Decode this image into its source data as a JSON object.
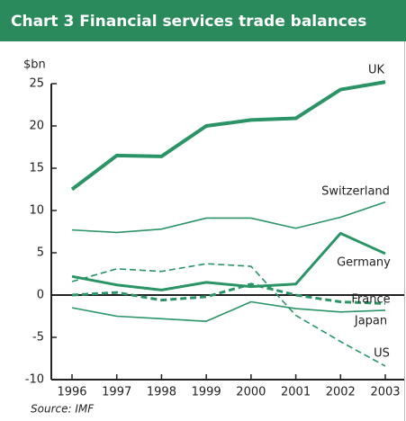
{
  "chart_data": {
    "type": "line",
    "title": "Chart 3  Financial services trade balances",
    "y_unit": "$bn",
    "source": "Source: IMF",
    "categories": [
      "1996",
      "1997",
      "1998",
      "1999",
      "2000",
      "2001",
      "2002",
      "2003"
    ],
    "ylim": [
      -10,
      25
    ],
    "yticks": [
      25,
      20,
      15,
      10,
      5,
      0,
      -5,
      -10
    ],
    "series": [
      {
        "name": "UK",
        "color": "#2a9466",
        "dashed": false,
        "values": [
          12.5,
          16.5,
          16.4,
          20,
          20.7,
          20.9,
          24.3,
          25.2
        ]
      },
      {
        "name": "Switzerland",
        "color": "#2a9466",
        "dashed": false,
        "values": [
          7.7,
          7.4,
          7.8,
          9.1,
          9.1,
          7.9,
          9.2,
          11
        ]
      },
      {
        "name": "Germany",
        "color": "#2a9466",
        "dashed": false,
        "values": [
          2.2,
          1.2,
          0.6,
          1.5,
          1,
          1.3,
          7.3,
          4.9
        ]
      },
      {
        "name": "France",
        "color": "#2a9466",
        "dashed": true,
        "values": [
          0,
          0.3,
          -0.6,
          -0.2,
          1.3,
          0,
          -0.8,
          -1
        ]
      },
      {
        "name": "Japan",
        "color": "#2a9466",
        "dashed": false,
        "values": [
          -1.5,
          -2.5,
          -2.8,
          -3.1,
          -0.8,
          -1.6,
          -2,
          -1.8
        ]
      },
      {
        "name": "US",
        "color": "#2a9466",
        "dashed": true,
        "values": [
          1.6,
          3.1,
          2.8,
          3.7,
          3.4,
          -2.4,
          -5.5,
          -8.4
        ]
      }
    ]
  }
}
